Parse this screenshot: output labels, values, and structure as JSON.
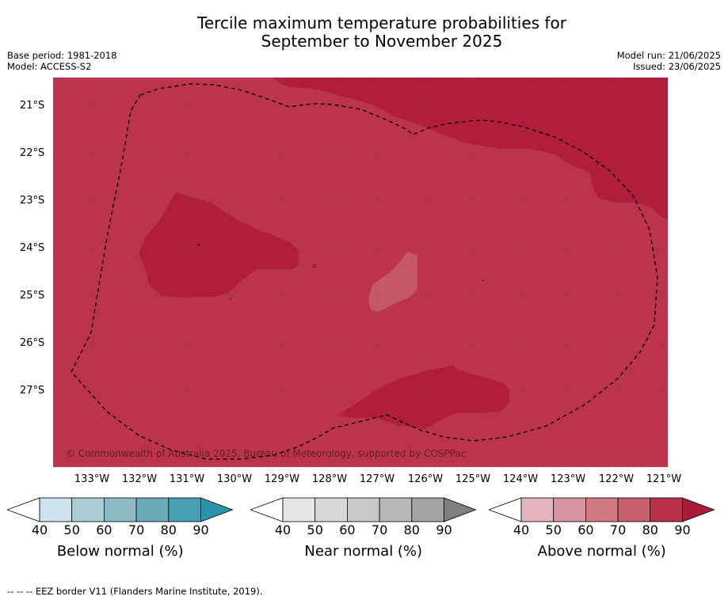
{
  "title_line1": "Tercile maximum temperature probabilities for",
  "title_line2": "September to November 2025",
  "base_period": "Base period: 1981-2018",
  "model": "Model: ACCESS-S2",
  "model_run": "Model run: 21/06/2025",
  "issued": "Issued: 23/06/2025",
  "copyright": "© Commonwealth of Australia 2025, Bureau of Meteorology, supported by COSPPac",
  "footer": "-- -- -- EEZ border V11 (Flanders Marine Institute, 2019).",
  "lat_labels": [
    "21°S",
    "22°S",
    "23°S",
    "24°S",
    "25°S",
    "26°S",
    "27°S"
  ],
  "lon_labels": [
    "133°W",
    "132°W",
    "131°W",
    "130°W",
    "129°W",
    "128°W",
    "127°W",
    "126°W",
    "125°W",
    "124°W",
    "123°W",
    "122°W",
    "121°W"
  ],
  "colorbars": [
    {
      "label": "Below normal (%)",
      "ticks": [
        "40",
        "50",
        "60",
        "70",
        "80",
        "90"
      ],
      "colors": [
        "#ffffff",
        "#cde4ea",
        "#abcdd5",
        "#8bbac6",
        "#6aaab9",
        "#4aa0b3",
        "#2a94a8"
      ]
    },
    {
      "label": "Near normal (%)",
      "ticks": [
        "40",
        "50",
        "60",
        "70",
        "80",
        "90"
      ],
      "colors": [
        "#ffffff",
        "#e5e5e5",
        "#d8d8d8",
        "#c9c9c9",
        "#b7b7b7",
        "#a4a4a4",
        "#7f7f7f"
      ]
    },
    {
      "label": "Above normal (%)",
      "ticks": [
        "40",
        "50",
        "60",
        "70",
        "80",
        "90"
      ],
      "colors": [
        "#ffffff",
        "#e3b4bd",
        "#d9959f",
        "#d17a84",
        "#c65f6e",
        "#b9324b",
        "#a81b3a"
      ]
    }
  ],
  "colors": {
    "map_base": "#bb344b",
    "map_high": "#b11e3b",
    "map_low": "#c65769"
  }
}
